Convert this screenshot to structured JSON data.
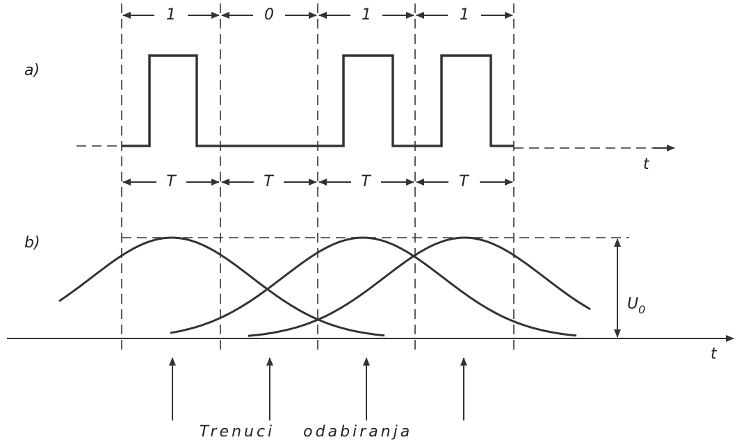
{
  "panels": {
    "a": "a)",
    "b": "b)"
  },
  "bits": [
    "1",
    "0",
    "1",
    "1"
  ],
  "period_labels": [
    "T",
    "T",
    "T",
    "T"
  ],
  "time_axis_a": "t",
  "time_axis_b": "t",
  "amplitude": {
    "symbol": "U",
    "subscript": "0"
  },
  "sampling_caption": "Trenuci odabiranja"
}
